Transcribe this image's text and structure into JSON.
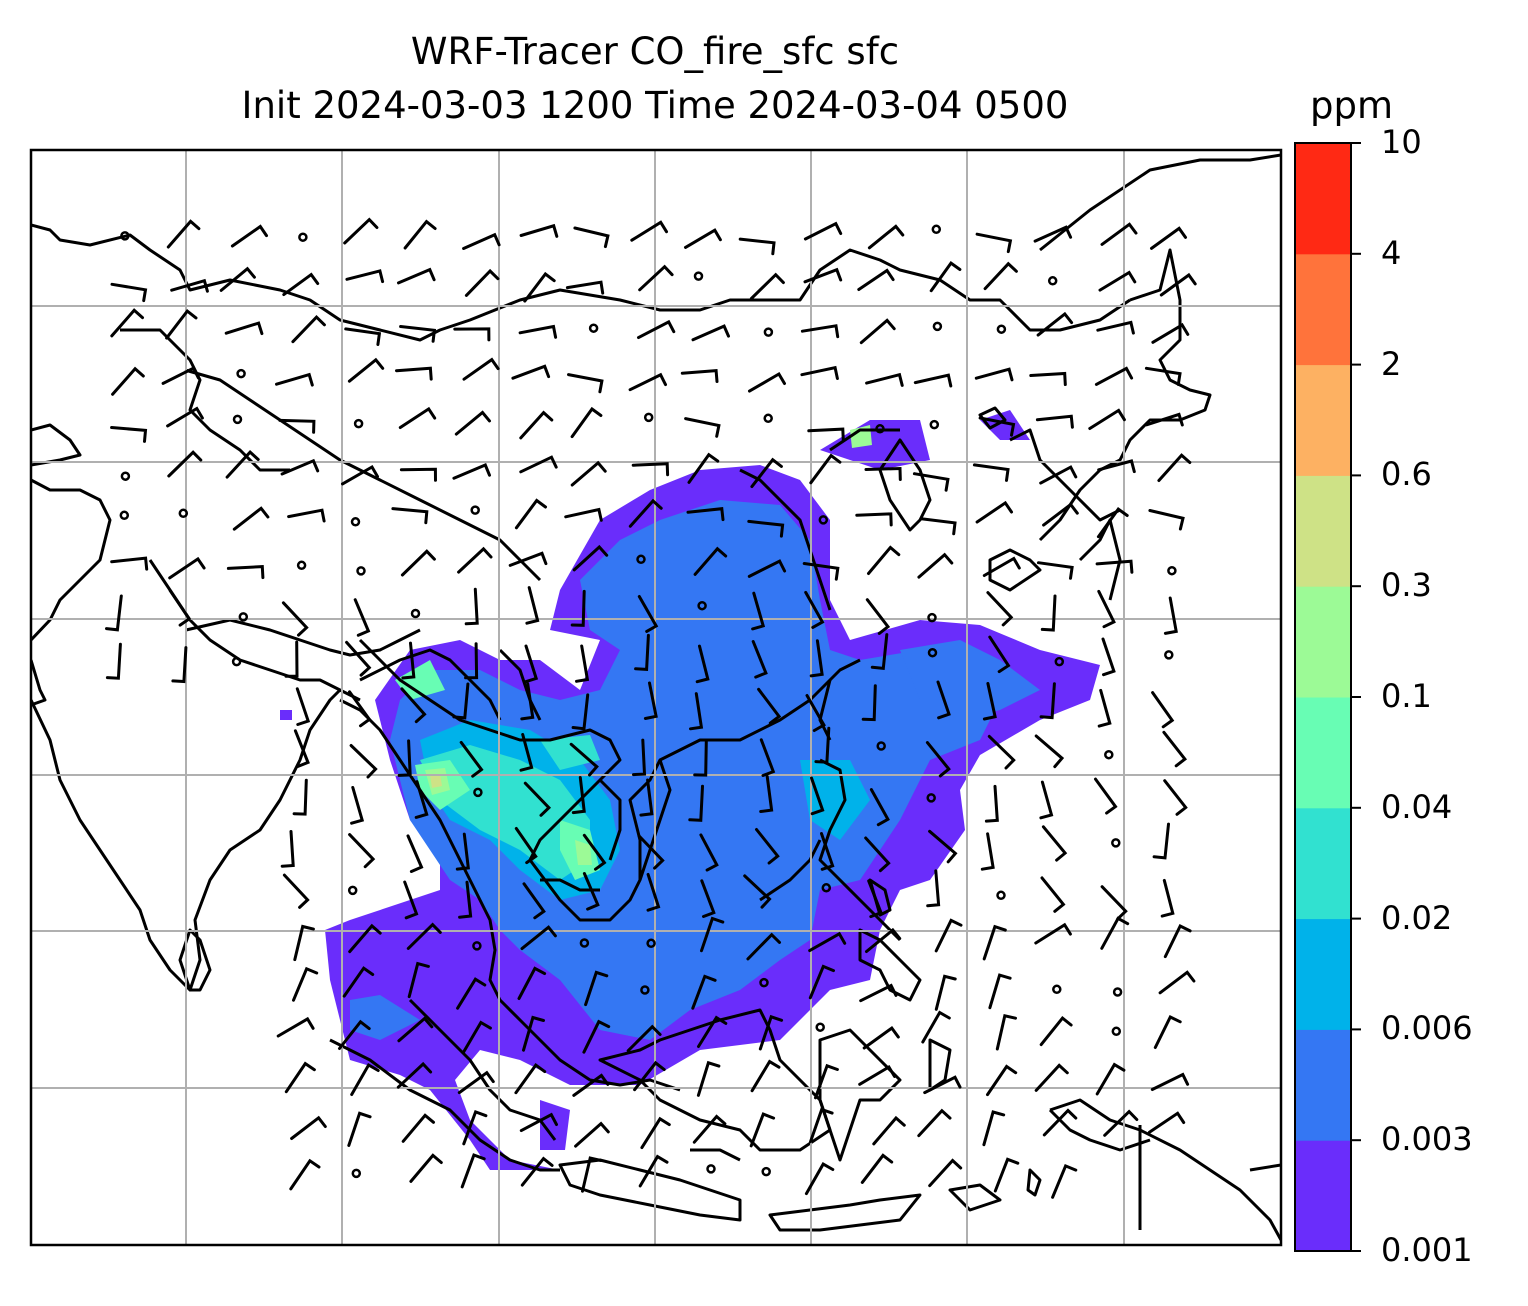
{
  "title": {
    "line1": "WRF-Tracer CO_fire_sfc sfc",
    "line2": "Init 2024-03-03 1200 Time 2024-03-04 0500"
  },
  "colorbar": {
    "unit": "ppm",
    "levels": [
      "0.001",
      "0.003",
      "0.006",
      "0.02",
      "0.04",
      "0.1",
      "0.3",
      "0.6",
      "2",
      "4",
      "10"
    ],
    "colors": [
      "#6a2dfb",
      "#3477f3",
      "#00b2ea",
      "#31e1d0",
      "#68fdb4",
      "#9cfa96",
      "#cee286",
      "#fdb162",
      "#ff733b",
      "#ff2914"
    ]
  },
  "map": {
    "region": "South & Southeast Asia",
    "gridlines": true,
    "overlay": "wind barbs"
  }
}
